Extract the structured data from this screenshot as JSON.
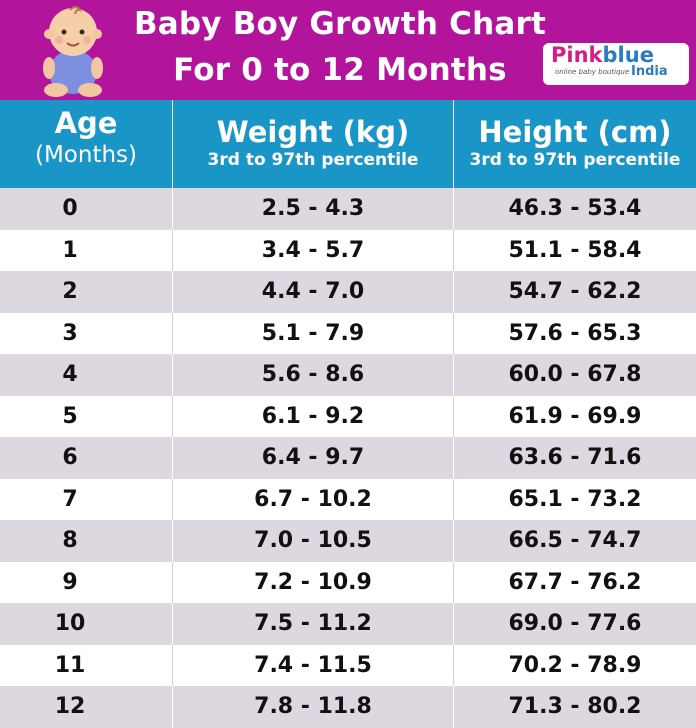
{
  "banner": {
    "title_line1": "Baby Boy Growth Chart",
    "title_line2": "For 0 to 12 Months",
    "background": "#b2149b",
    "baby_icon": "baby-icon"
  },
  "logo": {
    "pink": "Pink",
    "blue": "blue",
    "tagline": "online baby boutique",
    "country": "India"
  },
  "chart_data": {
    "type": "table",
    "columns": [
      {
        "title": "Age",
        "subtitle": "(Months)"
      },
      {
        "title": "Weight (kg)",
        "subtitle": "3rd to 97th percentile"
      },
      {
        "title": "Height (cm)",
        "subtitle": "3rd to 97th percentile"
      }
    ],
    "rows": [
      {
        "age": "0",
        "weight": "2.5 - 4.3",
        "height": "46.3 - 53.4"
      },
      {
        "age": "1",
        "weight": "3.4 - 5.7",
        "height": "51.1 - 58.4"
      },
      {
        "age": "2",
        "weight": "4.4 - 7.0",
        "height": "54.7 - 62.2"
      },
      {
        "age": "3",
        "weight": "5.1 - 7.9",
        "height": "57.6 - 65.3"
      },
      {
        "age": "4",
        "weight": "5.6 - 8.6",
        "height": "60.0 - 67.8"
      },
      {
        "age": "5",
        "weight": "6.1 - 9.2",
        "height": "61.9 - 69.9"
      },
      {
        "age": "6",
        "weight": "6.4 - 9.7",
        "height": "63.6 - 71.6"
      },
      {
        "age": "7",
        "weight": "6.7 - 10.2",
        "height": "65.1 - 73.2"
      },
      {
        "age": "8",
        "weight": "7.0 - 10.5",
        "height": "66.5 - 74.7"
      },
      {
        "age": "9",
        "weight": "7.2 - 10.9",
        "height": "67.7 - 76.2"
      },
      {
        "age": "10",
        "weight": "7.5 - 11.2",
        "height": "69.0 - 77.6"
      },
      {
        "age": "11",
        "weight": "7.4 - 11.5",
        "height": "70.2 - 78.9"
      },
      {
        "age": "12",
        "weight": "7.8 - 11.8",
        "height": "71.3 - 80.2"
      }
    ],
    "colors": {
      "header": "#1996c7",
      "row_alt": "#ddd8df",
      "row": "#ffffff"
    }
  }
}
